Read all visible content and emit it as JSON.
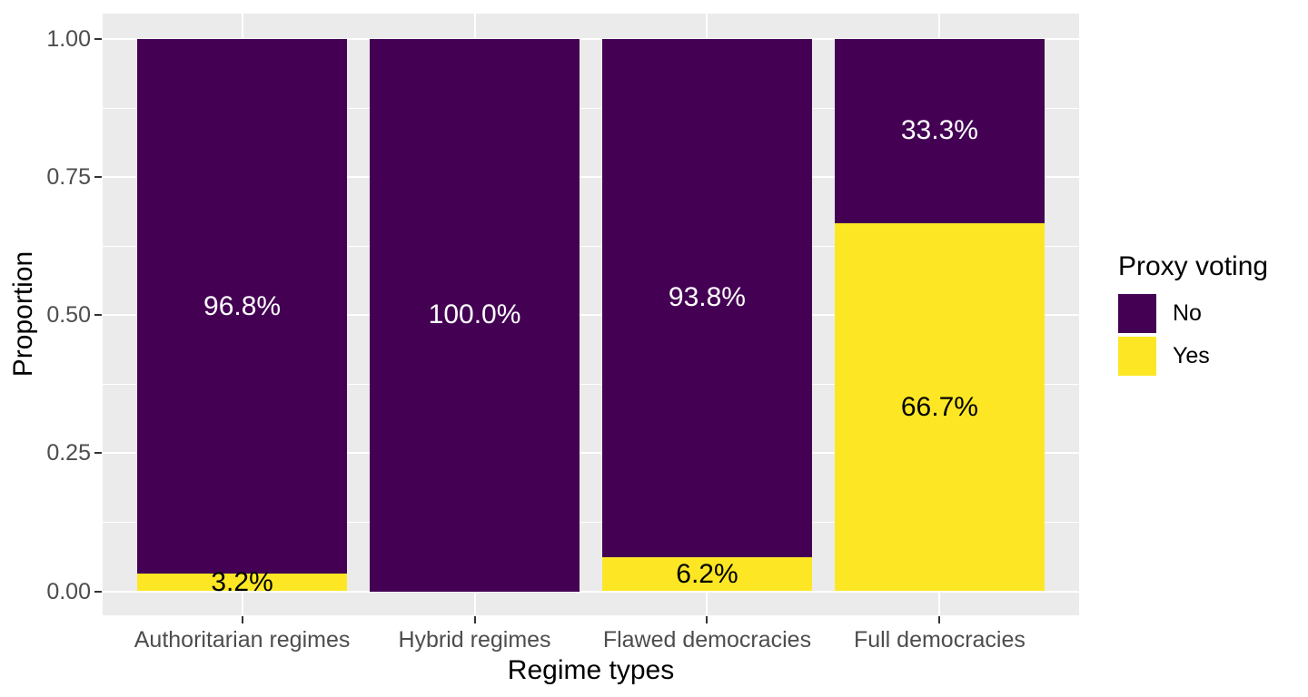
{
  "chart_data": {
    "type": "bar",
    "subtype": "stacked-proportion",
    "xlabel": "Regime types",
    "ylabel": "Proportion",
    "categories": [
      "Authoritarian regimes",
      "Hybrid regimes",
      "Flawed democracies",
      "Full democracies"
    ],
    "series": [
      {
        "name": "No",
        "color": "#440154",
        "label_color": "#FFFFFF",
        "values": [
          0.968,
          1.0,
          0.938,
          0.333
        ],
        "labels": [
          "96.8%",
          "100.0%",
          "93.8%",
          "33.3%"
        ]
      },
      {
        "name": "Yes",
        "color": "#FDE725",
        "label_color": "#000000",
        "values": [
          0.032,
          0.0,
          0.062,
          0.667
        ],
        "labels": [
          "3.2%",
          "",
          "6.2%",
          "66.7%"
        ]
      }
    ],
    "stack_order_bottom_to_top": [
      "Yes",
      "No"
    ],
    "y_ticks": [
      {
        "value": 0.0,
        "label": "0.00"
      },
      {
        "value": 0.25,
        "label": "0.25"
      },
      {
        "value": 0.5,
        "label": "0.50"
      },
      {
        "value": 0.75,
        "label": "0.75"
      },
      {
        "value": 1.0,
        "label": "1.00"
      }
    ],
    "ylim": [
      0,
      1
    ],
    "legend": {
      "title": "Proxy voting",
      "position": "right",
      "entries": [
        "No",
        "Yes"
      ]
    },
    "grid": {
      "horizontal_major": true,
      "horizontal_minor": true,
      "vertical_major_at_categories": true
    },
    "colors": {
      "figure_background": "#FFFFFF",
      "panel_background": "#EBEBEB",
      "grid_line": "#FFFFFF",
      "tick_mark": "#333333",
      "tick_label": "#4D4D4D",
      "axis_title": "#000000"
    }
  }
}
